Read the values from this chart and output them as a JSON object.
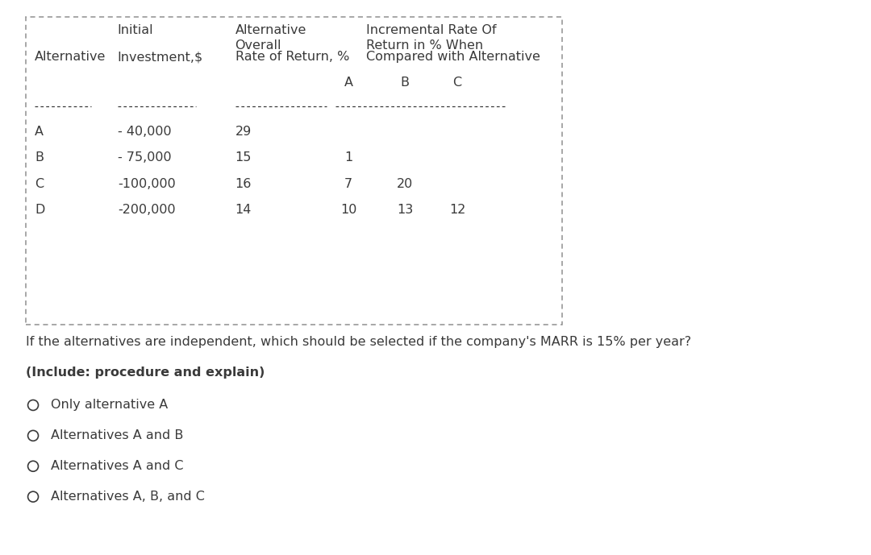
{
  "bg_color": "#ffffff",
  "text_color": "#3a3a3a",
  "table_border_color": "#909090",
  "rows": [
    [
      "A",
      "- 40,000",
      "29",
      "",
      "",
      ""
    ],
    [
      "B",
      "- 75,000",
      "15",
      "1",
      "",
      ""
    ],
    [
      "C",
      "-100,000",
      "16",
      "7",
      "20",
      ""
    ],
    [
      "D",
      "-200,000",
      "14",
      "10",
      "13",
      "12"
    ]
  ],
  "question_text": "If the alternatives are independent, which should be selected if the company's MARR is 15% per year?",
  "instruction_text": "(Include: procedure and explain)",
  "options": [
    "Only alternative A",
    "Alternatives A and B",
    "Alternatives A and C",
    "Alternatives A, B, and C"
  ],
  "col_headers_line1_texts": [
    "Initial",
    "Alternative\nOverall",
    "Incremental Rate Of\nReturn in % When"
  ],
  "col_headers_line2_texts": [
    "Alternative",
    "Investment,$",
    "Rate of Return, %",
    "Compared with Alternative"
  ],
  "sub_col_headers": [
    "A",
    "B",
    "C"
  ],
  "font_size": 11.5
}
